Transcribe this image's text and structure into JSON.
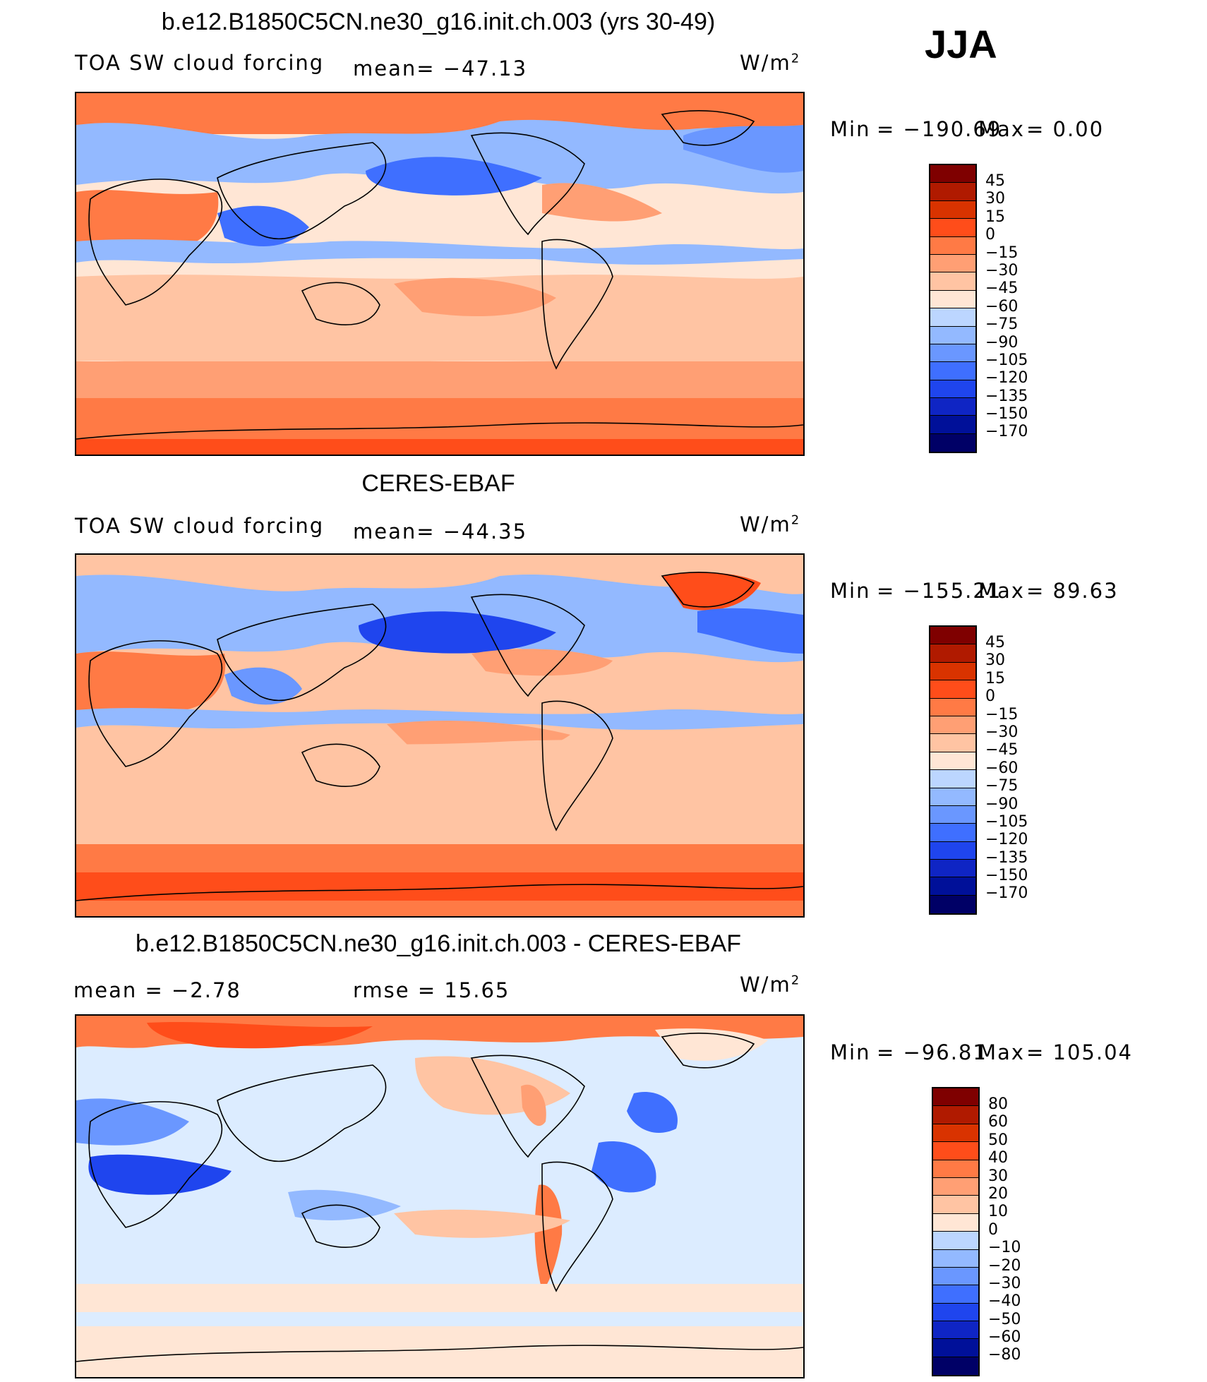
{
  "season": "JJA",
  "units": "W/m",
  "units_sup": "2",
  "panels": [
    {
      "title": "b.e12.B1850C5CN.ne30_g16.init.ch.003 (yrs 30-49)",
      "left_label": "TOA SW cloud forcing",
      "mid_label": "mean=  −47.13",
      "min_label": "Min",
      "min_value": "=  −190.69",
      "max_label": "Max",
      "max_value": "=     0.00",
      "levels": [
        "45",
        "30",
        "15",
        "0",
        "−15",
        "−30",
        "−45",
        "−60",
        "−75",
        "−90",
        "−105",
        "−120",
        "−135",
        "−150",
        "−170"
      ]
    },
    {
      "title": "CERES-EBAF",
      "left_label": "TOA SW cloud forcing",
      "mid_label": "mean=  −44.35",
      "min_label": "Min",
      "min_value": "=  −155.21",
      "max_label": "Max",
      "max_value": "=   89.63",
      "levels": [
        "45",
        "30",
        "15",
        "0",
        "−15",
        "−30",
        "−45",
        "−60",
        "−75",
        "−90",
        "−105",
        "−120",
        "−135",
        "−150",
        "−170"
      ]
    },
    {
      "title": "b.e12.B1850C5CN.ne30_g16.init.ch.003 - CERES-EBAF",
      "left_label": "mean  =    −2.78",
      "mid_label": "rmse  =    15.65",
      "min_label": "Min",
      "min_value": "=  −96.81",
      "max_label": "Max",
      "max_value": "=  105.04",
      "levels": [
        "80",
        "60",
        "50",
        "40",
        "30",
        "20",
        "10",
        "0",
        "−10",
        "−20",
        "−30",
        "−40",
        "−50",
        "−60",
        "−80"
      ]
    }
  ],
  "palette": [
    "#7f0000",
    "#b01a00",
    "#d93300",
    "#ff4d1a",
    "#ff7a45",
    "#ff9f74",
    "#ffc4a3",
    "#ffe6d5",
    "#dcecff",
    "#bcd6ff",
    "#93b9ff",
    "#6a97ff",
    "#3f6fff",
    "#1f45ee",
    "#0f25c4",
    "#001099",
    "#000066"
  ],
  "colors": {
    "polar_ocean": "#ff7a45",
    "subtropical_ocean": "#ffc4a3",
    "trade_cumulus": "#ffe6d5",
    "stratocumulus": "#ff9f74",
    "storm_track": "#3f6fff",
    "itcz": "#6a97ff",
    "diff_neutral": "#dcecff"
  }
}
